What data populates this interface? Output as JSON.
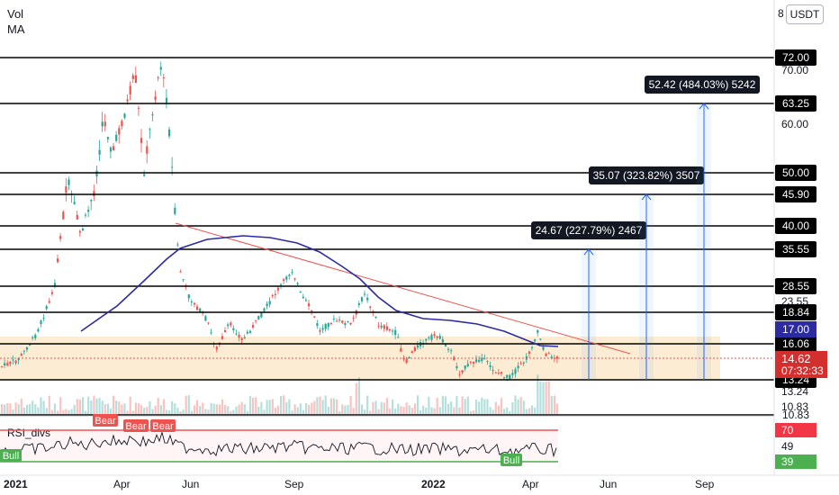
{
  "indicators": {
    "vol_label": "Vol",
    "ma_label": "MA",
    "rsi_label": "RSI_divs"
  },
  "currency": "USDT",
  "axis_top_tick": "8",
  "colors": {
    "up": "#26a69a",
    "down": "#ef5350",
    "ma_line": "#2c2ca0",
    "trend_line": "#ef5350",
    "zone_fill": "#fbecd3",
    "arrow": "#2962ff",
    "rsi_line": "#131722",
    "rsi_top": "#ef5350",
    "rsi_bottom": "#4caf50"
  },
  "chart_data": {
    "type": "candlestick",
    "x_axis_labels": [
      "2021",
      "Apr",
      "Jun",
      "Sep",
      "2022",
      "Apr",
      "Jun",
      "Sep"
    ],
    "price_axis_labels": [
      "70.00",
      "60.00",
      "23.55",
      "13.24",
      "10.83"
    ],
    "horizontal_levels": [
      "72.00",
      "63.25",
      "50.00",
      "45.90",
      "40.00",
      "35.55",
      "28.55",
      "18.84",
      "16.06",
      "13.24",
      "10.83"
    ],
    "current_price": "14.62",
    "countdown": "07:32:33",
    "ma_value": "17.00",
    "targets": [
      {
        "label": "24.67 (227.79%) 2467"
      },
      {
        "label": "35.07 (323.82%) 3507"
      },
      {
        "label": "52.42 (484.03%) 5242"
      }
    ],
    "rsi": {
      "values": [
        "70",
        "49",
        "39"
      ],
      "bear_labels": [
        "Bear",
        "Bear",
        "Bear"
      ],
      "bull_labels": [
        "Bull",
        "Bull"
      ]
    }
  }
}
